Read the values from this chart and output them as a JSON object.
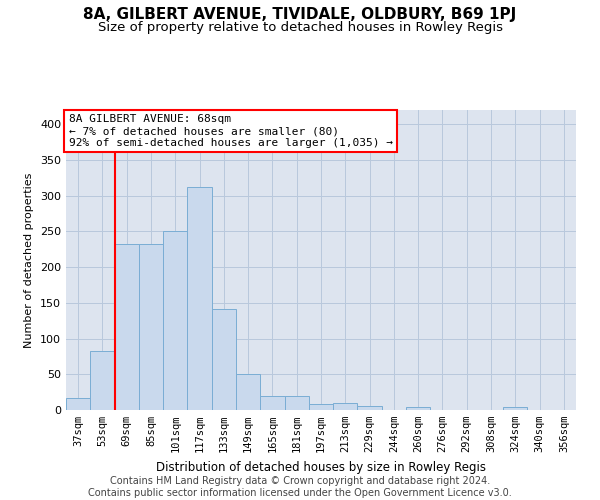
{
  "title": "8A, GILBERT AVENUE, TIVIDALE, OLDBURY, B69 1PJ",
  "subtitle": "Size of property relative to detached houses in Rowley Regis",
  "xlabel": "Distribution of detached houses by size in Rowley Regis",
  "ylabel": "Number of detached properties",
  "footer_line1": "Contains HM Land Registry data © Crown copyright and database right 2024.",
  "footer_line2": "Contains public sector information licensed under the Open Government Licence v3.0.",
  "categories": [
    "37sqm",
    "53sqm",
    "69sqm",
    "85sqm",
    "101sqm",
    "117sqm",
    "133sqm",
    "149sqm",
    "165sqm",
    "181sqm",
    "197sqm",
    "213sqm",
    "229sqm",
    "244sqm",
    "260sqm",
    "276sqm",
    "292sqm",
    "308sqm",
    "324sqm",
    "340sqm",
    "356sqm"
  ],
  "values": [
    17,
    82,
    232,
    232,
    250,
    312,
    142,
    50,
    20,
    20,
    9,
    10,
    5,
    0,
    4,
    0,
    0,
    0,
    4,
    0,
    0
  ],
  "bar_color": "#c9d9ed",
  "bar_edge_color": "#7aadd4",
  "annotation_title": "8A GILBERT AVENUE: 68sqm",
  "annotation_line2": "← 7% of detached houses are smaller (80)",
  "annotation_line3": "92% of semi-detached houses are larger (1,035) →",
  "annotation_box_color": "white",
  "annotation_box_edge": "red",
  "vline_color": "red",
  "vline_x": 1.5,
  "ylim": [
    0,
    420
  ],
  "yticks": [
    0,
    50,
    100,
    150,
    200,
    250,
    300,
    350,
    400
  ],
  "grid_color": "#b8c8dc",
  "bg_color": "#dde4ef",
  "title_fontsize": 11,
  "subtitle_fontsize": 9.5,
  "ylabel_fontsize": 8,
  "xlabel_fontsize": 8.5,
  "tick_fontsize": 7.5,
  "ann_fontsize": 8,
  "footer_fontsize": 7
}
